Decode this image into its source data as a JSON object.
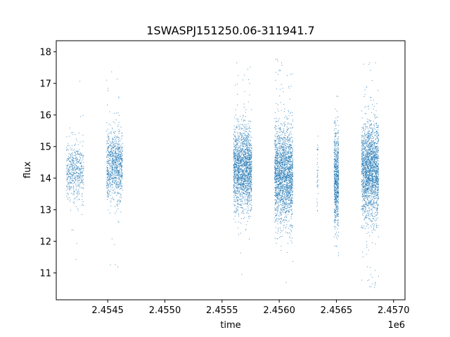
{
  "chart_data": {
    "type": "scatter",
    "title": "1SWASPJ151250.06-311941.7",
    "xlabel": "time",
    "ylabel": "flux",
    "x_offset_label": "1e6",
    "xlim": [
      2.45405,
      2.4571
    ],
    "ylim": [
      10.15,
      18.35
    ],
    "x_ticks": [
      2.4545,
      2.455,
      2.4555,
      2.456,
      2.4565,
      2.457
    ],
    "x_tick_labels": [
      "2.4545",
      "2.4550",
      "2.4555",
      "2.4560",
      "2.4565",
      "2.4570"
    ],
    "y_ticks": [
      11,
      12,
      13,
      14,
      15,
      16,
      17,
      18
    ],
    "y_tick_labels": [
      "11",
      "12",
      "13",
      "14",
      "15",
      "16",
      "17",
      "18"
    ],
    "grid": false,
    "marker_color": "#1f77b4",
    "series": [
      {
        "name": "",
        "clusters": [
          {
            "x_start": 2.45414,
            "x_end": 2.45429,
            "center": 14.25,
            "spread": 0.45,
            "min": 10.6,
            "max": 17.5,
            "count": 500
          },
          {
            "x_start": 2.45449,
            "x_end": 2.45463,
            "center": 14.4,
            "spread": 0.55,
            "min": 10.6,
            "max": 17.8,
            "count": 900
          },
          {
            "x_start": 2.4556,
            "x_end": 2.45576,
            "center": 14.3,
            "spread": 0.65,
            "min": 10.5,
            "max": 17.8,
            "count": 1800
          },
          {
            "x_start": 2.45596,
            "x_end": 2.45612,
            "center": 14.15,
            "spread": 0.75,
            "min": 10.6,
            "max": 17.9,
            "count": 2000
          },
          {
            "x_start": 2.45633,
            "x_end": 2.45634,
            "center": 14.0,
            "spread": 0.6,
            "min": 12.7,
            "max": 16.1,
            "count": 40
          },
          {
            "x_start": 2.45648,
            "x_end": 2.45652,
            "center": 14.0,
            "spread": 0.75,
            "min": 11.4,
            "max": 16.7,
            "count": 700
          },
          {
            "x_start": 2.45672,
            "x_end": 2.45687,
            "center": 14.3,
            "spread": 0.75,
            "min": 10.5,
            "max": 18.0,
            "count": 2000
          }
        ]
      }
    ]
  }
}
